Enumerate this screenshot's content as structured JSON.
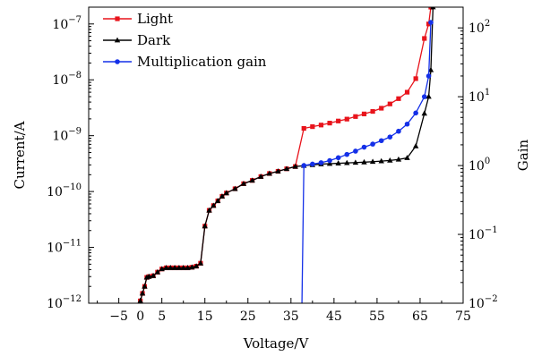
{
  "chart_data": {
    "type": "line",
    "xlabel": "Voltage/V",
    "ylabel": "Current/A",
    "y2label": "Gain",
    "xlim": [
      -12,
      75
    ],
    "ylim": [
      1e-12,
      2e-07
    ],
    "y2lim": [
      0.01,
      200
    ],
    "yscale": "log",
    "y2scale": "log",
    "xticks": [
      {
        "value": -5,
        "label": "−5"
      },
      {
        "value": 0,
        "label": "0"
      },
      {
        "value": 5,
        "label": "5"
      },
      {
        "value": 15,
        "label": "15"
      },
      {
        "value": 25,
        "label": "25"
      },
      {
        "value": 35,
        "label": "35"
      },
      {
        "value": 45,
        "label": "45"
      },
      {
        "value": 55,
        "label": "55"
      },
      {
        "value": 65,
        "label": "65"
      },
      {
        "value": 75,
        "label": "75"
      }
    ],
    "yticks": [
      {
        "value": 1e-12,
        "base": "10",
        "exp": "−12"
      },
      {
        "value": 1e-11,
        "base": "10",
        "exp": "−11"
      },
      {
        "value": 1e-10,
        "base": "10",
        "exp": "−10"
      },
      {
        "value": 1e-09,
        "base": "10",
        "exp": "−9"
      },
      {
        "value": 1e-08,
        "base": "10",
        "exp": "−8"
      },
      {
        "value": 1e-07,
        "base": "10",
        "exp": "−7"
      }
    ],
    "y2ticks": [
      {
        "value": 0.01,
        "base": "10",
        "exp": "−2"
      },
      {
        "value": 0.1,
        "base": "10",
        "exp": "−1"
      },
      {
        "value": 1,
        "base": "10",
        "exp": "0"
      },
      {
        "value": 10,
        "base": "10",
        "exp": "1"
      },
      {
        "value": 100,
        "base": "10",
        "exp": "2"
      }
    ],
    "grid": false,
    "legend_position": "top-left",
    "series": [
      {
        "name": "Light",
        "color": "#e8141c",
        "marker": "square",
        "axis": "left",
        "x": [
          0,
          0.5,
          1,
          1.5,
          2,
          3,
          4,
          5,
          6,
          7,
          8,
          9,
          10,
          11,
          12,
          13,
          14,
          15,
          16,
          17,
          18,
          19,
          20,
          22,
          24,
          26,
          28,
          30,
          32,
          34,
          36,
          38,
          40,
          42,
          44,
          46,
          48,
          50,
          52,
          54,
          56,
          58,
          60,
          62,
          64,
          66,
          67,
          67.5
        ],
        "y": [
          1.1e-12,
          1.5e-12,
          2e-12,
          2.9e-12,
          3e-12,
          3.1e-12,
          3.6e-12,
          4.1e-12,
          4.3e-12,
          4.3e-12,
          4.3e-12,
          4.3e-12,
          4.3e-12,
          4.3e-12,
          4.4e-12,
          4.6e-12,
          5.2e-12,
          2.4e-11,
          4.6e-11,
          5.6e-11,
          6.8e-11,
          8.2e-11,
          9.4e-11,
          1.12e-10,
          1.38e-10,
          1.58e-10,
          1.85e-10,
          2.1e-10,
          2.3e-10,
          2.55e-10,
          2.8e-10,
          1.35e-09,
          1.45e-09,
          1.55e-09,
          1.68e-09,
          1.83e-09,
          1.98e-09,
          2.2e-09,
          2.45e-09,
          2.72e-09,
          3.1e-09,
          3.7e-09,
          4.6e-09,
          6e-09,
          1.05e-08,
          5.5e-08,
          1e-07,
          2e-07
        ]
      },
      {
        "name": "Dark",
        "color": "#000000",
        "marker": "triangle",
        "axis": "left",
        "x": [
          0,
          0.5,
          1,
          1.5,
          2,
          3,
          4,
          5,
          6,
          7,
          8,
          9,
          10,
          11,
          12,
          13,
          14,
          15,
          16,
          17,
          18,
          19,
          20,
          22,
          24,
          26,
          28,
          30,
          32,
          34,
          36,
          38,
          40,
          42,
          44,
          46,
          48,
          50,
          52,
          54,
          56,
          58,
          60,
          62,
          64,
          66,
          67,
          67.5,
          68
        ],
        "y": [
          1.1e-12,
          1.5e-12,
          2e-12,
          2.9e-12,
          3e-12,
          3.1e-12,
          3.6e-12,
          4.1e-12,
          4.3e-12,
          4.3e-12,
          4.3e-12,
          4.3e-12,
          4.3e-12,
          4.3e-12,
          4.4e-12,
          4.6e-12,
          5.2e-12,
          2.4e-11,
          4.6e-11,
          5.6e-11,
          6.8e-11,
          8.2e-11,
          9.4e-11,
          1.12e-10,
          1.38e-10,
          1.58e-10,
          1.85e-10,
          2.1e-10,
          2.3e-10,
          2.55e-10,
          2.8e-10,
          2.9e-10,
          3e-10,
          3.1e-10,
          3.15e-10,
          3.2e-10,
          3.25e-10,
          3.3e-10,
          3.35e-10,
          3.42e-10,
          3.5e-10,
          3.6e-10,
          3.75e-10,
          4e-10,
          6.5e-10,
          2.5e-09,
          5e-09,
          1.5e-08,
          2e-07
        ]
      },
      {
        "name": "Multiplication gain",
        "color": "#1430e8",
        "marker": "circle",
        "axis": "right",
        "x": [
          37.5,
          38,
          40,
          42,
          44,
          46,
          48,
          50,
          52,
          54,
          56,
          58,
          60,
          62,
          64,
          66,
          67,
          67.5
        ],
        "y": [
          0.006,
          1.0,
          1.05,
          1.1,
          1.18,
          1.3,
          1.45,
          1.62,
          1.85,
          2.05,
          2.3,
          2.6,
          3.15,
          4.0,
          5.8,
          10.0,
          20.0,
          120.0
        ],
        "markers_from_index": 1
      }
    ]
  }
}
